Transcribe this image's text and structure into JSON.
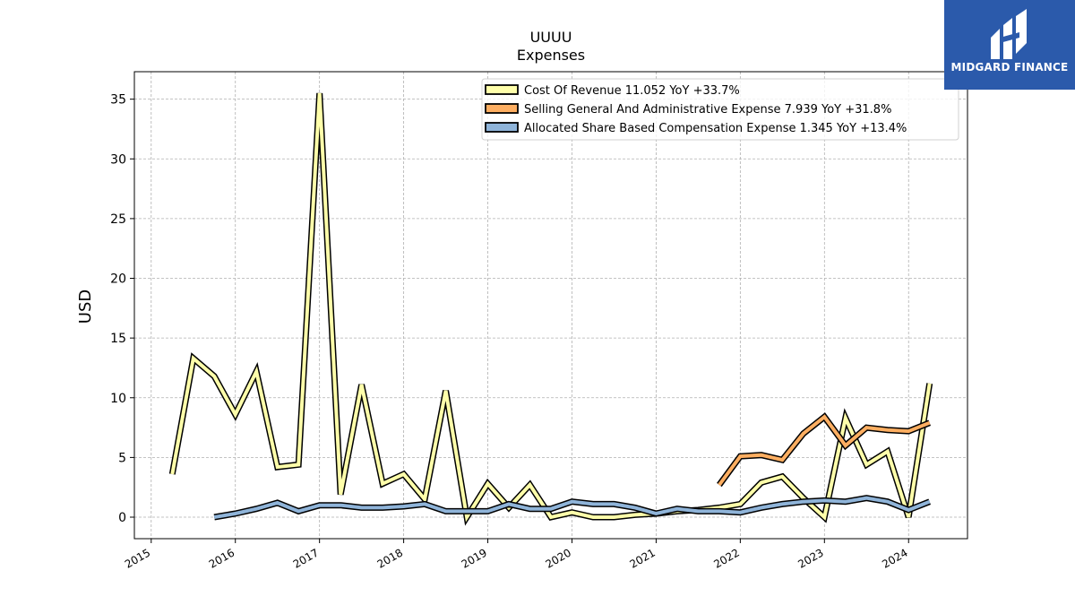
{
  "chart_data": {
    "type": "line",
    "title": "UUUU",
    "subtitle": "Expenses",
    "xlabel": "",
    "ylabel": "USD",
    "xlim": [
      2014.8,
      2024.7
    ],
    "ylim": [
      -1.8,
      37.3
    ],
    "x_ticks": [
      2015,
      2016,
      2017,
      2018,
      2019,
      2020,
      2021,
      2022,
      2023,
      2024
    ],
    "y_ticks": [
      0,
      5,
      10,
      15,
      20,
      25,
      30,
      35
    ],
    "grid": true,
    "legend_position": "top-right",
    "series": [
      {
        "name": "Cost Of Revenue  11.052 YoY +33.7%",
        "color": "#ffffaa",
        "x": [
          2015.25,
          2015.5,
          2015.75,
          2016.0,
          2016.25,
          2016.5,
          2016.75,
          2017.0,
          2017.25,
          2017.5,
          2017.75,
          2018.0,
          2018.25,
          2018.5,
          2018.75,
          2019.0,
          2019.25,
          2019.5,
          2019.75,
          2020.0,
          2020.25,
          2020.5,
          2020.75,
          2021.0,
          2021.25,
          2021.5,
          2021.75,
          2022.0,
          2022.25,
          2022.5,
          2022.75,
          2023.0,
          2023.25,
          2023.5,
          2023.75,
          2024.0,
          2024.25
        ],
        "values": [
          3.6,
          13.3,
          11.8,
          8.6,
          12.2,
          4.2,
          4.4,
          35.5,
          1.9,
          11.1,
          2.8,
          3.6,
          1.5,
          10.6,
          0.0,
          2.8,
          0.8,
          2.7,
          0.0,
          0.4,
          0.0,
          0.0,
          0.2,
          0.3,
          0.5,
          0.6,
          0.8,
          1.1,
          2.9,
          3.4,
          1.6,
          0.0,
          8.3,
          4.4,
          5.5,
          0.0,
          11.2
        ]
      },
      {
        "name": "Selling General And Administrative Expense  7.939 YoY +31.8%",
        "color": "#fdae61",
        "x": [
          2021.75,
          2022.0,
          2022.25,
          2022.5,
          2022.75,
          2023.0,
          2023.25,
          2023.5,
          2023.75,
          2024.0,
          2024.25
        ],
        "values": [
          2.7,
          5.1,
          5.2,
          4.8,
          7.0,
          8.4,
          6.0,
          7.5,
          7.3,
          7.2,
          7.9
        ]
      },
      {
        "name": "Allocated Share Based Compensation Expense  1.345 YoY +13.4%",
        "color": "#8fb4d9",
        "x": [
          2015.75,
          2016.0,
          2016.25,
          2016.5,
          2016.75,
          2017.0,
          2017.25,
          2017.5,
          2017.75,
          2018.0,
          2018.25,
          2018.5,
          2018.75,
          2019.0,
          2019.25,
          2019.5,
          2019.75,
          2020.0,
          2020.25,
          2020.5,
          2020.75,
          2021.0,
          2021.25,
          2021.5,
          2021.75,
          2022.0,
          2022.25,
          2022.5,
          2022.75,
          2023.0,
          2023.25,
          2023.5,
          2023.75,
          2024.0,
          2024.25
        ],
        "values": [
          0.0,
          0.3,
          0.7,
          1.2,
          0.5,
          1.0,
          1.0,
          0.8,
          0.8,
          0.9,
          1.1,
          0.5,
          0.5,
          0.5,
          1.1,
          0.7,
          0.7,
          1.3,
          1.1,
          1.1,
          0.8,
          0.3,
          0.7,
          0.5,
          0.5,
          0.4,
          0.8,
          1.1,
          1.3,
          1.4,
          1.3,
          1.6,
          1.3,
          0.6,
          1.3
        ]
      }
    ]
  },
  "logo": {
    "text": "MIDGARD FINANCE",
    "background": "#2b5aab"
  }
}
